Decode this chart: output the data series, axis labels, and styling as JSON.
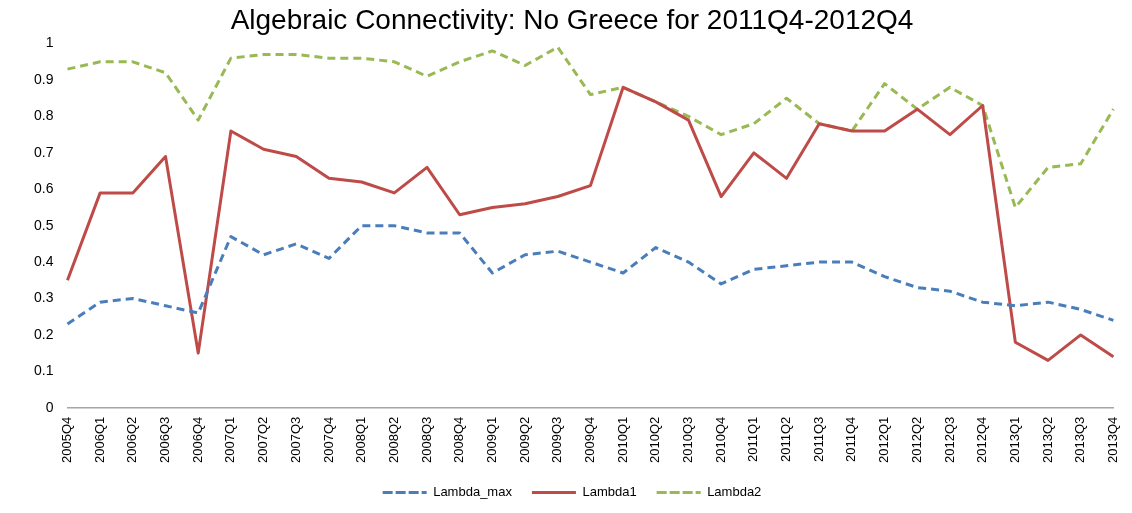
{
  "chart_data": {
    "type": "line",
    "title": "Algebraic Connectivity: No Greece for 2011Q4-2012Q4",
    "categories": [
      "2005Q4",
      "2006Q1",
      "2006Q2",
      "2006Q3",
      "2006Q4",
      "2007Q1",
      "2007Q2",
      "2007Q3",
      "2007Q4",
      "2008Q1",
      "2008Q2",
      "2008Q3",
      "2008Q4",
      "2009Q1",
      "2009Q2",
      "2009Q3",
      "2009Q4",
      "2010Q1",
      "2010Q2",
      "2010Q3",
      "2010Q4",
      "2011Q1",
      "2011Q2",
      "2011Q3",
      "2011Q4",
      "2012Q1",
      "2012Q2",
      "2012Q3",
      "2012Q4",
      "2013Q1",
      "2013Q2",
      "2013Q3",
      "2013Q4"
    ],
    "series": [
      {
        "name": "Lambda_max",
        "color": "#4a7ebb",
        "line_style": "dashed",
        "values": [
          0.23,
          0.29,
          0.3,
          0.28,
          0.26,
          0.47,
          0.42,
          0.45,
          0.41,
          0.5,
          0.5,
          0.48,
          0.48,
          0.37,
          0.42,
          0.43,
          0.4,
          0.37,
          0.44,
          0.4,
          0.34,
          0.38,
          0.39,
          0.4,
          0.4,
          0.36,
          0.33,
          0.32,
          0.29,
          0.28,
          0.29,
          0.27,
          0.24
        ]
      },
      {
        "name": "Lambda1",
        "color": "#be4b48",
        "line_style": "solid",
        "values": [
          0.35,
          0.59,
          0.59,
          0.69,
          0.15,
          0.76,
          0.71,
          0.69,
          0.63,
          0.62,
          0.59,
          0.66,
          0.53,
          0.55,
          0.56,
          0.58,
          0.61,
          0.88,
          0.84,
          0.79,
          0.58,
          0.7,
          0.63,
          0.78,
          0.76,
          0.76,
          0.82,
          0.75,
          0.83,
          0.18,
          0.13,
          0.2,
          0.14
        ]
      },
      {
        "name": "Lambda2",
        "color": "#98b954",
        "line_style": "dashed",
        "values": [
          0.93,
          0.95,
          0.95,
          0.92,
          0.79,
          0.96,
          0.97,
          0.97,
          0.96,
          0.96,
          0.95,
          0.91,
          0.95,
          0.98,
          0.94,
          0.99,
          0.86,
          0.88,
          0.84,
          0.8,
          0.75,
          0.78,
          0.85,
          0.78,
          0.76,
          0.89,
          0.82,
          0.88,
          0.83,
          0.55,
          0.66,
          0.67,
          0.82
        ]
      }
    ],
    "ylim": [
      0,
      1
    ],
    "yticks": [
      0,
      0.1,
      0.2,
      0.3,
      0.4,
      0.5,
      0.6,
      0.7,
      0.8,
      0.9,
      1
    ],
    "grid": false,
    "legend": "bottom",
    "marker": "none"
  }
}
